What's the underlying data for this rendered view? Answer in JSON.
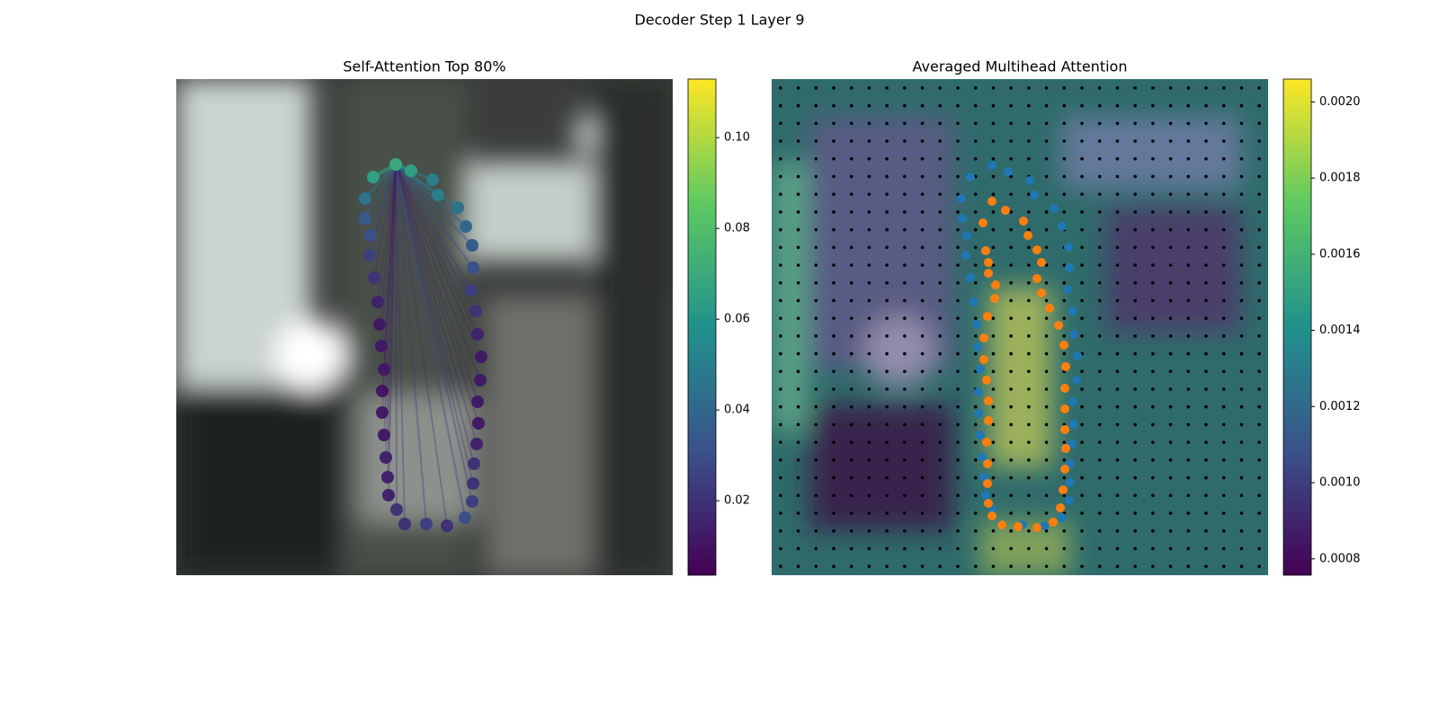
{
  "chart_data": [
    {
      "type": "self-attention",
      "title": "Decoder Step 1 Layer 9",
      "subtitle": "Self-Attention Top 80%",
      "colorbar_lim": [
        0.0036,
        0.1129
      ],
      "colorbar_ticks": [
        0.02,
        0.04,
        0.06,
        0.08,
        {
          "value": 0.1,
          "label": "0.10"
        }
      ],
      "points": [
        [
          244,
          95
        ],
        [
          261,
          102
        ],
        [
          285,
          112
        ],
        [
          291,
          129
        ],
        [
          313,
          143
        ],
        [
          322,
          164
        ],
        [
          329,
          185
        ],
        [
          330,
          210
        ],
        [
          328,
          235
        ],
        [
          333,
          258
        ],
        [
          335,
          284
        ],
        [
          339,
          309
        ],
        [
          338,
          335
        ],
        [
          335,
          359
        ],
        [
          336,
          383
        ],
        [
          334,
          406
        ],
        [
          331,
          428
        ],
        [
          330,
          450
        ],
        [
          329,
          470
        ],
        [
          321,
          488
        ],
        [
          301,
          497
        ],
        [
          278,
          495
        ],
        [
          254,
          495
        ],
        [
          245,
          479
        ],
        [
          236,
          463
        ],
        [
          235,
          443
        ],
        [
          233,
          421
        ],
        [
          231,
          396
        ],
        [
          229,
          371
        ],
        [
          229,
          347
        ],
        [
          231,
          323
        ],
        [
          228,
          297
        ],
        [
          226,
          273
        ],
        [
          224,
          248
        ],
        [
          220,
          221
        ],
        [
          215,
          196
        ],
        [
          216,
          174
        ],
        [
          210,
          155
        ],
        [
          210,
          133
        ],
        [
          219,
          109
        ]
      ],
      "values": [
        0.07,
        0.065,
        0.05,
        0.05,
        0.045,
        0.04,
        0.035,
        0.03,
        0.025,
        0.02,
        0.015,
        0.012,
        0.012,
        0.012,
        0.012,
        0.015,
        0.02,
        0.02,
        0.025,
        0.03,
        0.02,
        0.025,
        0.02,
        0.02,
        0.015,
        0.015,
        0.015,
        0.012,
        0.012,
        0.01,
        0.012,
        0.012,
        0.012,
        0.015,
        0.02,
        0.025,
        0.03,
        0.035,
        0.045,
        0.065
      ]
    },
    {
      "type": "multihead-attention",
      "subtitle": "Averaged Multihead Attention",
      "colorbar_lim": [
        0.000757,
        0.00206
      ],
      "colorbar_ticks": [
        0.0008,
        {
          "value": 0.001,
          "label": "0.0010"
        },
        0.0012,
        0.0014,
        0.0016,
        0.0018,
        {
          "value": 0.002,
          "label": "0.0020"
        }
      ],
      "series": [
        {
          "color": "#1f77b4",
          "points": [
            [
              245,
              96
            ],
            [
              263,
              103
            ],
            [
              287,
              113
            ],
            [
              292,
              129
            ],
            [
              314,
              144
            ],
            [
              323,
              164
            ],
            [
              330,
              187
            ],
            [
              331,
              210
            ],
            [
              329,
              234
            ],
            [
              335,
              258
            ],
            [
              336,
              284
            ],
            [
              340,
              308
            ],
            [
              339,
              335
            ],
            [
              335,
              359
            ],
            [
              336,
              384
            ],
            [
              334,
              406
            ],
            [
              332,
              428
            ],
            [
              332,
              449
            ],
            [
              331,
              469
            ],
            [
              323,
              488
            ],
            [
              303,
              497
            ],
            [
              279,
              496
            ],
            [
              255,
              495
            ],
            [
              246,
              479
            ],
            [
              238,
              463
            ],
            [
              236,
              443
            ],
            [
              234,
              421
            ],
            [
              232,
              396
            ],
            [
              230,
              372
            ],
            [
              230,
              348
            ],
            [
              232,
              323
            ],
            [
              229,
              298
            ],
            [
              228,
              273
            ],
            [
              225,
              248
            ],
            [
              221,
              221
            ],
            [
              216,
              196
            ],
            [
              217,
              174
            ],
            [
              212,
              155
            ],
            [
              211,
              133
            ],
            [
              221,
              109
            ]
          ]
        },
        {
          "color": "#ff7f0e",
          "points": [
            [
              245,
              136
            ],
            [
              260,
              146
            ],
            [
              280,
              158
            ],
            [
              285,
              174
            ],
            [
              295,
              190
            ],
            [
              300,
              204
            ],
            [
              295,
              222
            ],
            [
              300,
              238
            ],
            [
              309,
              255
            ],
            [
              319,
              274
            ],
            [
              325,
              296
            ],
            [
              327,
              320
            ],
            [
              326,
              344
            ],
            [
              326,
              367
            ],
            [
              326,
              390
            ],
            [
              327,
              411
            ],
            [
              326,
              434
            ],
            [
              324,
              457
            ],
            [
              321,
              477
            ],
            [
              313,
              493
            ],
            [
              295,
              499
            ],
            [
              274,
              498
            ],
            [
              256,
              496
            ],
            [
              245,
              486
            ],
            [
              241,
              472
            ],
            [
              240,
              450
            ],
            [
              240,
              428
            ],
            [
              239,
              404
            ],
            [
              241,
              380
            ],
            [
              241,
              358
            ],
            [
              239,
              335
            ],
            [
              236,
              312
            ],
            [
              236,
              288
            ],
            [
              240,
              264
            ],
            [
              248,
              244
            ],
            [
              249,
              229
            ],
            [
              241,
              216
            ],
            [
              241,
              204
            ],
            [
              238,
              191
            ],
            [
              235,
              160
            ]
          ]
        }
      ]
    }
  ]
}
